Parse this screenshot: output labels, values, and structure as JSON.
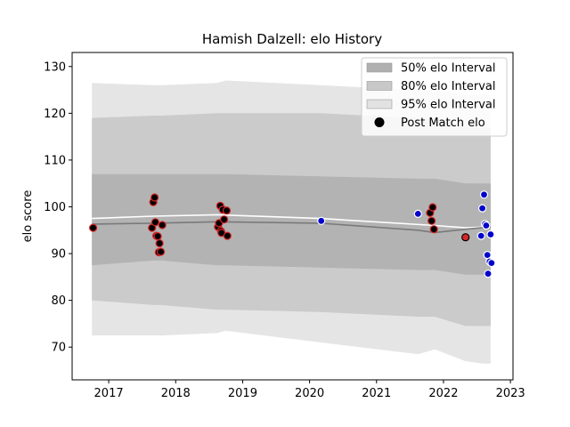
{
  "chart_data": {
    "type": "line",
    "title": "Hamish Dalzell: elo History",
    "xlabel": "",
    "ylabel": "elo score",
    "xlim": [
      "2016-06-15",
      "2023-01-15"
    ],
    "ylim": [
      63,
      133
    ],
    "x_ticks": [
      "2017",
      "2018",
      "2019",
      "2020",
      "2021",
      "2022",
      "2023"
    ],
    "y_ticks": [
      70,
      80,
      90,
      100,
      110,
      120,
      130
    ],
    "grid": false,
    "legend_position": "top-right",
    "legend": [
      {
        "label": "50% elo Interval",
        "kind": "band",
        "color": "#b0b0b0"
      },
      {
        "label": "80% elo Interval",
        "kind": "band",
        "color": "#c8c8c8"
      },
      {
        "label": "95% elo Interval",
        "kind": "band",
        "color": "#e2e2e2"
      },
      {
        "label": "Post Match elo",
        "kind": "marker",
        "color": "#000000"
      }
    ],
    "intervals": {
      "dates": [
        "2016-10-01",
        "2017-09-01",
        "2017-10-15",
        "2018-08-15",
        "2018-10-01",
        "2020-03-01",
        "2021-08-15",
        "2021-11-15",
        "2022-05-01",
        "2022-08-01",
        "2022-09-15"
      ],
      "p95_low": [
        72.5,
        72.5,
        72.5,
        73.0,
        73.5,
        71.0,
        68.5,
        69.5,
        67.0,
        66.5,
        66.5
      ],
      "p95_high": [
        126.5,
        126.0,
        126.0,
        126.5,
        127.0,
        126.0,
        125.0,
        125.0,
        124.0,
        124.0,
        124.0
      ],
      "p80_low": [
        80.0,
        79.0,
        79.0,
        78.0,
        78.0,
        77.5,
        76.5,
        76.5,
        74.5,
        74.5,
        74.5
      ],
      "p80_high": [
        119.0,
        119.5,
        119.5,
        120.0,
        120.0,
        120.0,
        119.0,
        119.0,
        117.0,
        117.0,
        117.0
      ],
      "p50_low": [
        87.5,
        88.5,
        88.5,
        87.5,
        87.5,
        87.0,
        86.5,
        86.5,
        85.5,
        85.5,
        85.5
      ],
      "p50_high": [
        107.0,
        107.0,
        107.0,
        107.0,
        107.0,
        106.5,
        106.0,
        106.0,
        105.0,
        105.0,
        105.0
      ]
    },
    "series": [
      {
        "name": "",
        "kind": "line",
        "color": "#ffffff",
        "x": [
          "2016-10-01",
          "2017-09-01",
          "2018-08-15",
          "2020-03-01",
          "2021-11-15",
          "2022-05-01",
          "2022-09-15"
        ],
        "y": [
          97.5,
          98.0,
          98.3,
          97.5,
          96.0,
          95.5,
          95.7
        ]
      },
      {
        "name": "",
        "kind": "line",
        "color": "#7a7a7a",
        "x": [
          "2016-10-01",
          "2017-09-01",
          "2018-08-15",
          "2020-03-01",
          "2021-08-15",
          "2021-11-15",
          "2022-05-01",
          "2022-09-15"
        ],
        "y": [
          96.3,
          96.5,
          96.8,
          96.5,
          95.0,
          94.5,
          95.2,
          95.7
        ]
      },
      {
        "name": "",
        "kind": "scatter",
        "fill": "#000000",
        "edge": "#d62728",
        "x": [
          "2016-10-08",
          "2017-08-25",
          "2017-09-01",
          "2017-09-08",
          "2017-09-12",
          "2017-09-18",
          "2017-09-25",
          "2017-10-01",
          "2017-10-05",
          "2017-10-12",
          "2017-10-20",
          "2018-08-20",
          "2018-08-25",
          "2018-09-01",
          "2018-09-05",
          "2018-09-08",
          "2018-09-15",
          "2018-09-22",
          "2018-10-06",
          "2018-10-10",
          "2021-10-20",
          "2021-10-28",
          "2021-11-03",
          "2021-11-10"
        ],
        "y": [
          95.5,
          95.5,
          101.0,
          102.0,
          96.7,
          93.8,
          93.7,
          90.3,
          92.2,
          90.4,
          96.1,
          95.7,
          96.5,
          100.2,
          94.8,
          94.4,
          99.4,
          97.3,
          99.2,
          93.8,
          98.7,
          97.0,
          99.9,
          95.2
        ]
      },
      {
        "name": "",
        "kind": "scatter",
        "fill": "#0000cc",
        "edge": "#ffffff",
        "x": [
          "2020-03-05",
          "2021-08-15",
          "2022-07-25",
          "2022-08-01",
          "2022-08-10",
          "2022-08-15",
          "2022-08-22",
          "2022-08-28",
          "2022-09-01",
          "2022-09-10",
          "2022-09-15",
          "2022-09-20"
        ],
        "y": [
          97.0,
          98.5,
          93.8,
          99.7,
          102.6,
          96.3,
          96.0,
          89.7,
          85.7,
          88.3,
          94.1,
          88.0
        ]
      },
      {
        "name": "",
        "kind": "scatter",
        "fill": "#d62728",
        "edge": "#000000",
        "x": [
          "2022-05-01"
        ],
        "y": [
          93.5
        ]
      }
    ]
  }
}
